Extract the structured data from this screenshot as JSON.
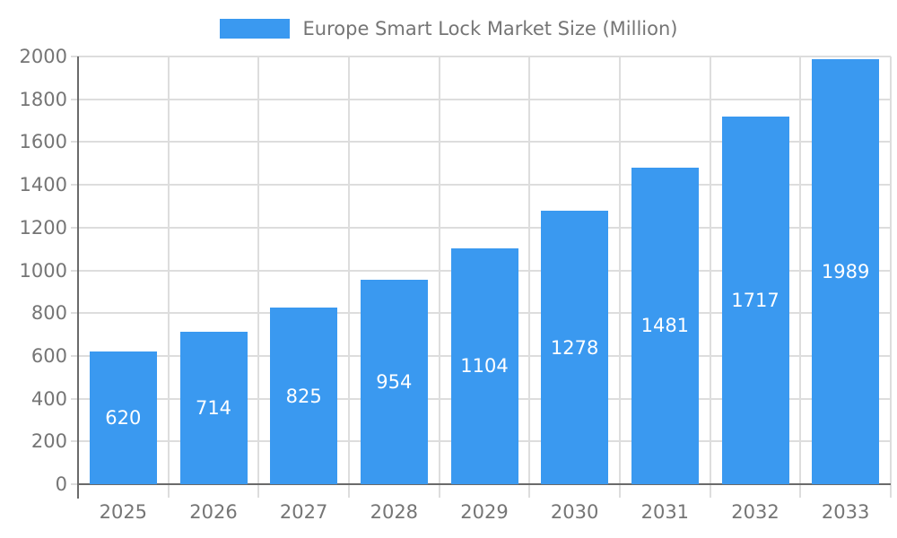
{
  "legend": {
    "label": "Europe Smart Lock Market Size (Million)"
  },
  "colors": {
    "bar": "#3a99f0",
    "grid": "#dddddd",
    "axis": "#6a6a6a",
    "text": "#757575",
    "value_label": "#ffffff",
    "background": "#ffffff"
  },
  "chart_data": {
    "type": "bar",
    "title": "",
    "series_name": "Europe Smart Lock Market Size (Million)",
    "categories": [
      "2025",
      "2026",
      "2027",
      "2028",
      "2029",
      "2030",
      "2031",
      "2032",
      "2033"
    ],
    "values": [
      620,
      714,
      825,
      954,
      1104,
      1278,
      1481,
      1717,
      1989
    ],
    "xlabel": "",
    "ylabel": "",
    "ylim": [
      0,
      2000
    ],
    "yticks": [
      0,
      200,
      400,
      600,
      800,
      1000,
      1200,
      1400,
      1600,
      1800,
      2000
    ],
    "grid": true,
    "legend_position": "top-center",
    "value_labels": "inside-center"
  }
}
